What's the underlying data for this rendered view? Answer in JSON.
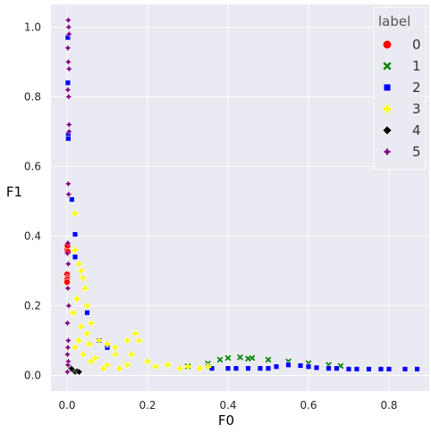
{
  "chart_data": {
    "type": "scatter",
    "xlabel": "F0",
    "ylabel": "F1",
    "xlim": [
      -0.04,
      0.9
    ],
    "ylim": [
      -0.045,
      1.065
    ],
    "xticks": [
      "0.0",
      "0.2",
      "0.4",
      "0.6",
      "0.8"
    ],
    "xtick_values": [
      0.0,
      0.2,
      0.4,
      0.6,
      0.8
    ],
    "yticks": [
      "0.0",
      "0.2",
      "0.4",
      "0.6",
      "0.8",
      "1.0"
    ],
    "ytick_values": [
      0.0,
      0.2,
      0.4,
      0.6,
      0.8,
      1.0
    ],
    "grid": true,
    "legend": {
      "title": "label",
      "placement": "top-right"
    },
    "series": [
      {
        "name": "0",
        "marker": "circle",
        "color": "#ff0000",
        "points": [
          [
            0.0,
            0.36
          ],
          [
            0.001,
            0.372
          ],
          [
            0.0,
            0.29
          ],
          [
            0.001,
            0.28
          ],
          [
            0.0,
            0.275
          ],
          [
            0.002,
            0.355
          ],
          [
            0.0,
            0.268
          ]
        ]
      },
      {
        "name": "1",
        "marker": "x",
        "color": "#008000",
        "points": [
          [
            0.3,
            0.026
          ],
          [
            0.35,
            0.034
          ],
          [
            0.4,
            0.05
          ],
          [
            0.43,
            0.052
          ],
          [
            0.46,
            0.05
          ],
          [
            0.5,
            0.045
          ],
          [
            0.55,
            0.04
          ],
          [
            0.6,
            0.035
          ],
          [
            0.65,
            0.03
          ],
          [
            0.68,
            0.027
          ],
          [
            0.38,
            0.045
          ],
          [
            0.45,
            0.048
          ]
        ]
      },
      {
        "name": "2",
        "marker": "square",
        "color": "#0000ff",
        "points": [
          [
            0.002,
            0.97
          ],
          [
            0.002,
            0.84
          ],
          [
            0.003,
            0.69
          ],
          [
            0.003,
            0.68
          ],
          [
            0.012,
            0.505
          ],
          [
            0.02,
            0.405
          ],
          [
            0.02,
            0.34
          ],
          [
            0.05,
            0.18
          ],
          [
            0.08,
            0.1
          ],
          [
            0.1,
            0.08
          ],
          [
            0.36,
            0.02
          ],
          [
            0.4,
            0.02
          ],
          [
            0.45,
            0.02
          ],
          [
            0.5,
            0.02
          ],
          [
            0.55,
            0.03
          ],
          [
            0.6,
            0.025
          ],
          [
            0.65,
            0.02
          ],
          [
            0.7,
            0.018
          ],
          [
            0.75,
            0.018
          ],
          [
            0.8,
            0.018
          ],
          [
            0.87,
            0.018
          ],
          [
            0.42,
            0.02
          ],
          [
            0.48,
            0.02
          ],
          [
            0.52,
            0.025
          ],
          [
            0.58,
            0.028
          ],
          [
            0.62,
            0.022
          ],
          [
            0.67,
            0.02
          ],
          [
            0.72,
            0.018
          ],
          [
            0.78,
            0.018
          ],
          [
            0.84,
            0.018
          ]
        ]
      },
      {
        "name": "3",
        "marker": "plus",
        "color": "#ffff00",
        "points": [
          [
            0.02,
            0.465
          ],
          [
            0.02,
            0.36
          ],
          [
            0.03,
            0.32
          ],
          [
            0.035,
            0.3
          ],
          [
            0.04,
            0.28
          ],
          [
            0.045,
            0.25
          ],
          [
            0.05,
            0.2
          ],
          [
            0.06,
            0.15
          ],
          [
            0.08,
            0.1
          ],
          [
            0.1,
            0.09
          ],
          [
            0.12,
            0.08
          ],
          [
            0.15,
            0.1
          ],
          [
            0.17,
            0.12
          ],
          [
            0.18,
            0.1
          ],
          [
            0.16,
            0.06
          ],
          [
            0.2,
            0.04
          ],
          [
            0.25,
            0.03
          ],
          [
            0.3,
            0.025
          ],
          [
            0.35,
            0.025
          ],
          [
            0.05,
            0.12
          ],
          [
            0.03,
            0.1
          ],
          [
            0.02,
            0.08
          ],
          [
            0.07,
            0.05
          ],
          [
            0.1,
            0.03
          ],
          [
            0.15,
            0.03
          ],
          [
            0.12,
            0.06
          ],
          [
            0.04,
            0.06
          ],
          [
            0.06,
            0.04
          ],
          [
            0.09,
            0.02
          ],
          [
            0.13,
            0.02
          ],
          [
            0.22,
            0.025
          ],
          [
            0.28,
            0.02
          ],
          [
            0.33,
            0.02
          ],
          [
            0.025,
            0.22
          ],
          [
            0.015,
            0.18
          ],
          [
            0.035,
            0.14
          ],
          [
            0.055,
            0.09
          ]
        ]
      },
      {
        "name": "4",
        "marker": "diamond",
        "color": "#000000",
        "points": [
          [
            0.01,
            0.02
          ],
          [
            0.015,
            0.015
          ],
          [
            0.02,
            0.01
          ],
          [
            0.025,
            0.012
          ],
          [
            0.03,
            0.01
          ],
          [
            0.012,
            0.018
          ]
        ]
      },
      {
        "name": "5",
        "marker": "star",
        "color": "#800080",
        "points": [
          [
            0.003,
            1.02
          ],
          [
            0.004,
            1.0
          ],
          [
            0.005,
            0.98
          ],
          [
            0.002,
            0.94
          ],
          [
            0.003,
            0.9
          ],
          [
            0.005,
            0.88
          ],
          [
            0.002,
            0.82
          ],
          [
            0.004,
            0.8
          ],
          [
            0.005,
            0.72
          ],
          [
            0.005,
            0.7
          ],
          [
            0.003,
            0.55
          ],
          [
            0.004,
            0.52
          ],
          [
            0.002,
            0.38
          ],
          [
            0.001,
            0.35
          ],
          [
            0.003,
            0.32
          ],
          [
            0.002,
            0.25
          ],
          [
            0.004,
            0.2
          ],
          [
            0.001,
            0.15
          ],
          [
            0.003,
            0.1
          ],
          [
            0.002,
            0.08
          ],
          [
            0.001,
            0.06
          ],
          [
            0.003,
            0.04
          ],
          [
            0.002,
            0.03
          ],
          [
            0.001,
            0.01
          ]
        ]
      }
    ]
  }
}
